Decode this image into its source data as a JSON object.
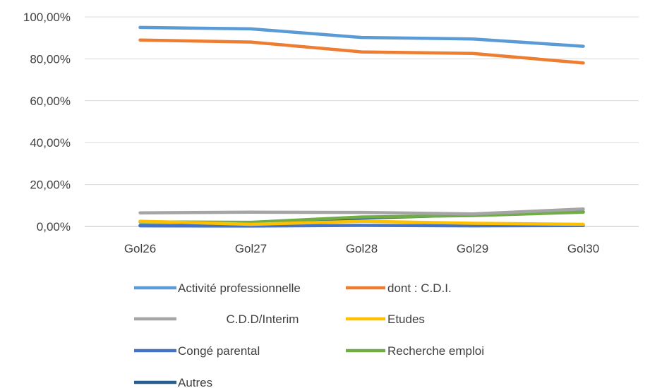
{
  "chart_data": {
    "type": "line",
    "categories": [
      "Gol26",
      "Gol27",
      "Gol28",
      "Gol29",
      "Gol30"
    ],
    "ylim": [
      0,
      100
    ],
    "yticks": [
      "0,00%",
      "20,00%",
      "40,00%",
      "60,00%",
      "80,00%",
      "100,00%"
    ],
    "grid": true,
    "legend_position": "bottom",
    "series": [
      {
        "name": "Activité professionnelle",
        "color": "#5b9bd5",
        "values": [
          95.0,
          94.3,
          90.2,
          89.5,
          86.0
        ]
      },
      {
        "name": "dont : C.D.I.",
        "color": "#ed7d31",
        "values": [
          89.0,
          88.0,
          83.3,
          82.6,
          78.0
        ]
      },
      {
        "name": "C.D.D/Interim",
        "color": "#a5a5a5",
        "values": [
          6.5,
          6.8,
          6.7,
          6.0,
          8.3
        ]
      },
      {
        "name": "Etudes",
        "color": "#ffc000",
        "values": [
          2.5,
          1.0,
          2.5,
          1.5,
          1.0
        ]
      },
      {
        "name": "Congé parental",
        "color": "#4472c4",
        "values": [
          0.3,
          0.2,
          0.5,
          0.3,
          0.4
        ]
      },
      {
        "name": "Recherche emploi",
        "color": "#70ad47",
        "values": [
          2.2,
          2.0,
          4.5,
          5.2,
          6.8
        ]
      },
      {
        "name": "Autres",
        "color": "#255e91",
        "values": [
          0.5,
          0.3,
          4.0,
          5.5,
          7.0
        ]
      }
    ]
  }
}
